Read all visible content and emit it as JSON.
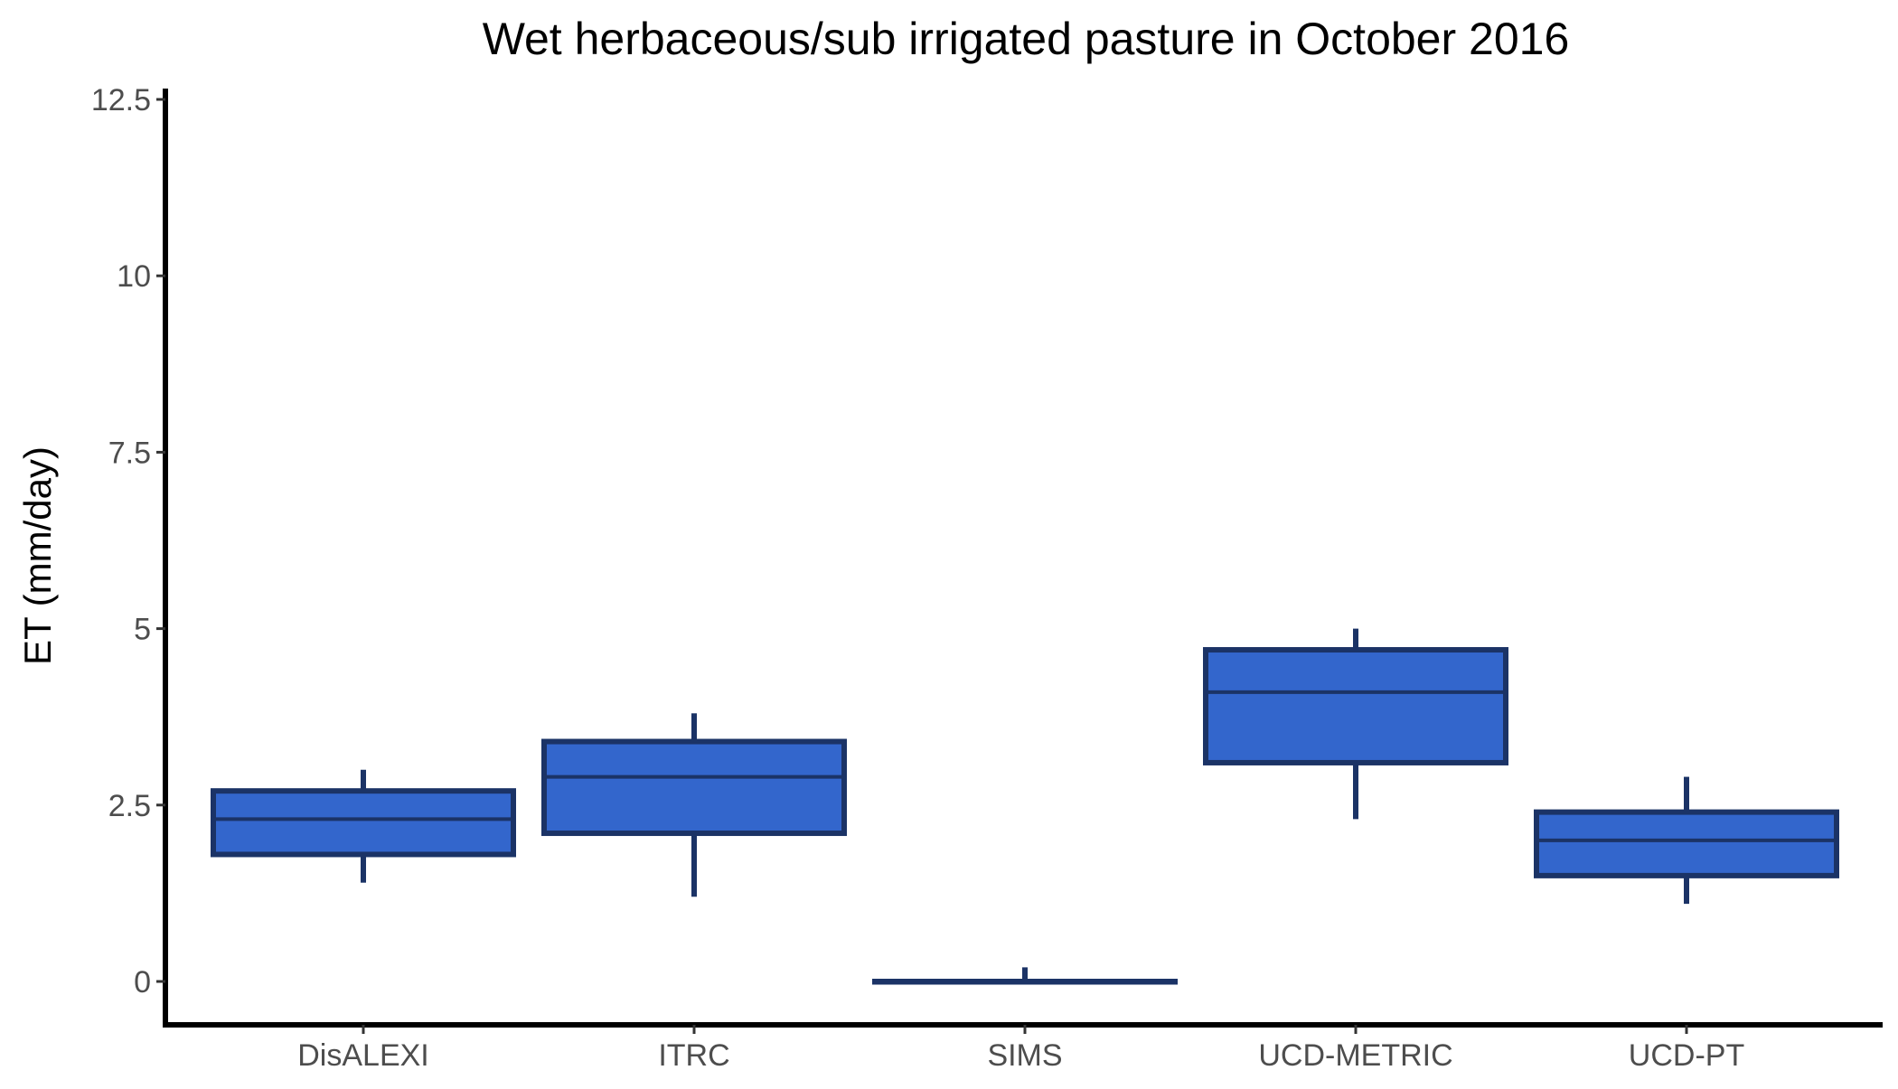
{
  "chart_data": {
    "type": "box",
    "title": "Wet herbaceous/sub irrigated pasture in October 2016",
    "xlabel": "",
    "ylabel": "ET (mm/day)",
    "ylim": [
      -0.6,
      12.6
    ],
    "yticks": [
      0,
      2.5,
      5,
      7.5,
      10,
      12.5
    ],
    "ytick_labels": [
      "0",
      "2.5",
      "5",
      "7.5",
      "10",
      "12.5"
    ],
    "grid": false,
    "legend": "none",
    "box_fill": "#3366cc",
    "box_stroke": "#1b3366",
    "categories": [
      "DisALEXI",
      "ITRC",
      "SIMS",
      "UCD-METRIC",
      "UCD-PT"
    ],
    "boxes": [
      {
        "category": "DisALEXI",
        "min": 1.4,
        "q1": 1.8,
        "median": 2.3,
        "q3": 2.7,
        "max": 3.0
      },
      {
        "category": "ITRC",
        "min": 1.2,
        "q1": 2.1,
        "median": 2.9,
        "q3": 3.4,
        "max": 3.8
      },
      {
        "category": "SIMS",
        "min": 0.0,
        "q1": 0.0,
        "median": 0.0,
        "q3": 0.0,
        "max": 0.2
      },
      {
        "category": "UCD-METRIC",
        "min": 2.3,
        "q1": 3.1,
        "median": 4.1,
        "q3": 4.7,
        "max": 5.0
      },
      {
        "category": "UCD-PT",
        "min": 1.1,
        "q1": 1.5,
        "median": 2.0,
        "q3": 2.4,
        "max": 2.9
      }
    ]
  }
}
